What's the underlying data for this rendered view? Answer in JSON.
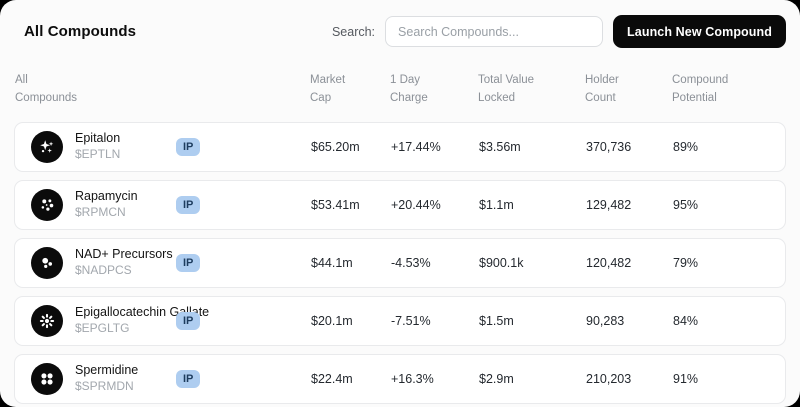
{
  "header": {
    "title": "All Compounds",
    "search_label": "Search:",
    "search_placeholder": "Search Compounds...",
    "launch_button_label": "Launch New Compound"
  },
  "table": {
    "columns": [
      "All Compounds",
      "Market Cap",
      "1 Day Charge",
      "Total Value Locked",
      "Holder Count",
      "Compound Potential"
    ],
    "rows": [
      {
        "name": "Epitalon",
        "ticker": "$EPTLN",
        "badge": "IP",
        "market_cap": "$65.20m",
        "day_change": "+17.44%",
        "tvl": "$3.56m",
        "holders": "370,736",
        "potential": "89%",
        "icon": "sparkles-icon"
      },
      {
        "name": "Rapamycin",
        "ticker": "$RPMCN",
        "badge": "IP",
        "market_cap": "$53.41m",
        "day_change": "+20.44%",
        "tvl": "$1.1m",
        "holders": "129,482",
        "potential": "95%",
        "icon": "molecule-dots-icon"
      },
      {
        "name": "NAD+ Precursors",
        "ticker": "$NADPCS",
        "badge": "IP",
        "market_cap": "$44.1m",
        "day_change": "-4.53%",
        "tvl": "$900.1k",
        "holders": "120,482",
        "potential": "79%",
        "icon": "three-dots-icon"
      },
      {
        "name": "Epigallocatechin Gallate",
        "ticker": "$EPGLTG",
        "badge": "IP",
        "market_cap": "$20.1m",
        "day_change": "-7.51%",
        "tvl": "$1.5m",
        "holders": "90,283",
        "potential": "84%",
        "icon": "burst-icon"
      },
      {
        "name": "Spermidine",
        "ticker": "$SPRMDN",
        "badge": "IP",
        "market_cap": "$22.4m",
        "day_change": "+16.3%",
        "tvl": "$2.9m",
        "holders": "210,203",
        "potential": "91%",
        "icon": "four-squares-icon"
      }
    ]
  },
  "colors": {
    "badge_bg": "#aecdf0",
    "badge_text": "#1d3c5e",
    "button_bg": "#0a0a0a",
    "button_text": "#ffffff"
  }
}
